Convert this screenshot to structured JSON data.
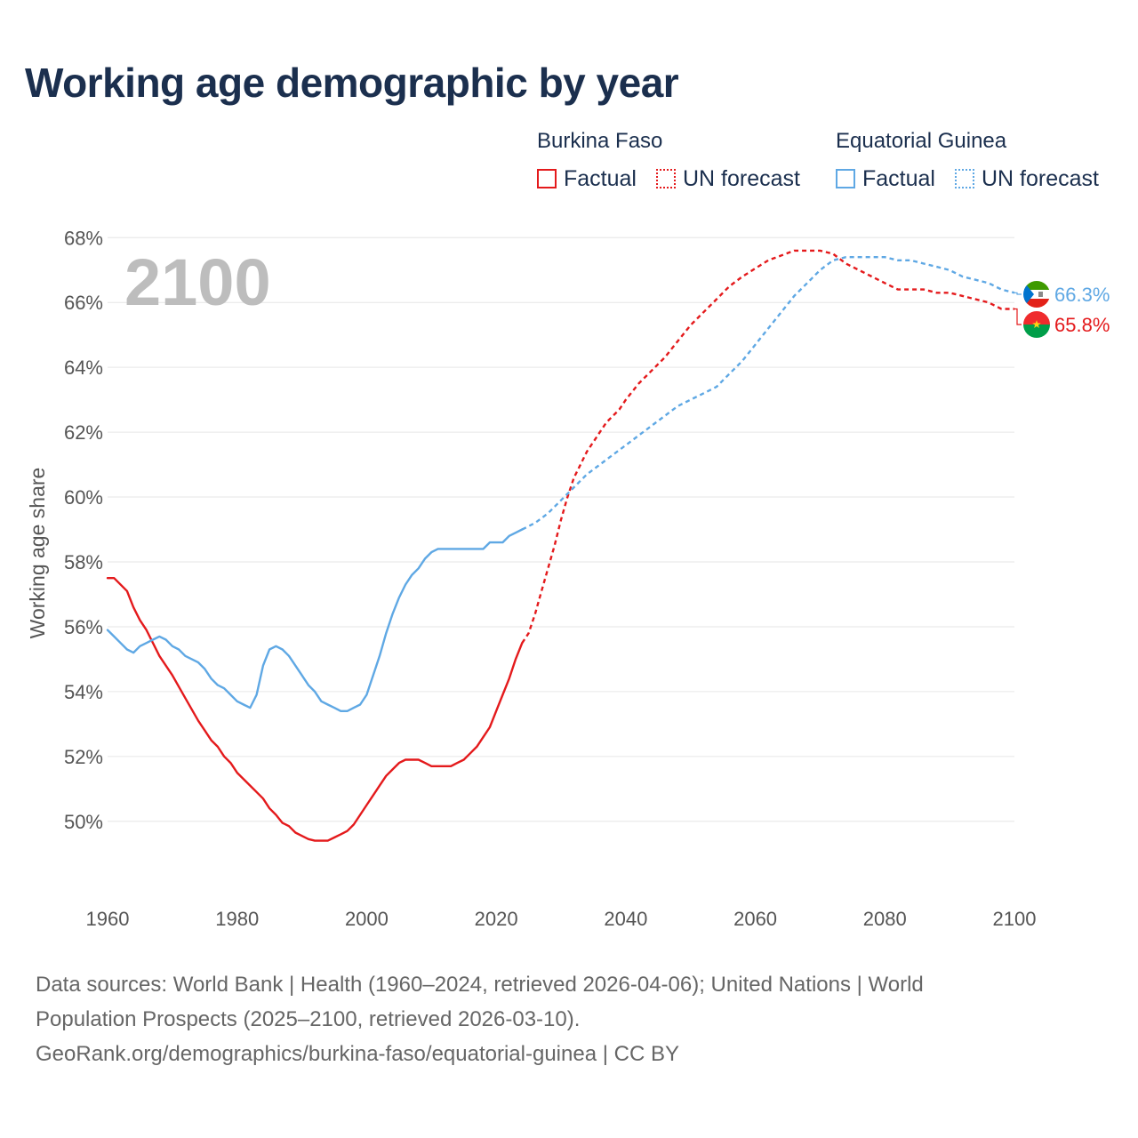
{
  "title": "Working age demographic by year",
  "legend": {
    "groups": [
      {
        "name": "Burkina Faso",
        "factual_label": "Factual",
        "forecast_label": "UN forecast",
        "color": "#e41a1c"
      },
      {
        "name": "Equatorial Guinea",
        "factual_label": "Factual",
        "forecast_label": "UN forecast",
        "color": "#5fa8e4"
      }
    ]
  },
  "chart_data": {
    "type": "line",
    "title": "Working age demographic by year",
    "xlabel": "",
    "ylabel": "Working age share",
    "xlim": [
      1960,
      2100
    ],
    "ylim": [
      47.8,
      68.2
    ],
    "x_ticks": [
      1960,
      1980,
      2000,
      2020,
      2040,
      2060,
      2080,
      2100
    ],
    "x_tick_labels": [
      "1960",
      "1980",
      "2000",
      "2020",
      "2040",
      "2060",
      "2080",
      "2100"
    ],
    "y_ticks": [
      50,
      52,
      54,
      56,
      58,
      60,
      62,
      64,
      66,
      68
    ],
    "y_tick_labels": [
      "50%",
      "52%",
      "54%",
      "56%",
      "58%",
      "60%",
      "62%",
      "64%",
      "66%",
      "68%"
    ],
    "grid": true,
    "year_label": "2100",
    "series": [
      {
        "name": "Burkina Faso",
        "color": "#e41a1c",
        "end_label": "65.8%",
        "factual": {
          "x": [
            1960,
            1961,
            1963,
            1964,
            1965,
            1966,
            1967,
            1968,
            1970,
            1972,
            1974,
            1975,
            1976,
            1977,
            1978,
            1979,
            1980,
            1981,
            1982,
            1984,
            1985,
            1986,
            1987,
            1988,
            1989,
            1990,
            1991,
            1992,
            1993,
            1994,
            1995,
            1996,
            1997,
            1998,
            1999,
            2000,
            2001,
            2002,
            2003,
            2004,
            2005,
            2006,
            2007,
            2008,
            2009,
            2010,
            2011,
            2012,
            2013,
            2014,
            2015,
            2016,
            2017,
            2018,
            2019,
            2020,
            2021,
            2022,
            2023,
            2024
          ],
          "y": [
            57.5,
            57.5,
            57.1,
            56.6,
            56.2,
            55.9,
            55.5,
            55.1,
            54.5,
            53.8,
            53.1,
            52.8,
            52.5,
            52.3,
            52.0,
            51.8,
            51.5,
            51.3,
            51.1,
            50.7,
            50.4,
            50.2,
            49.95,
            49.85,
            49.65,
            49.55,
            49.45,
            49.4,
            49.4,
            49.4,
            49.5,
            49.6,
            49.7,
            49.9,
            50.2,
            50.5,
            50.8,
            51.1,
            51.4,
            51.6,
            51.8,
            51.9,
            51.9,
            51.9,
            51.8,
            51.7,
            51.7,
            51.7,
            51.7,
            51.8,
            51.9,
            52.1,
            52.3,
            52.6,
            52.9,
            53.4,
            53.9,
            54.4,
            55.0,
            55.5
          ]
        },
        "forecast": {
          "x": [
            2024,
            2025,
            2026,
            2027,
            2028,
            2029,
            2030,
            2031,
            2032,
            2033,
            2034,
            2035,
            2036,
            2037,
            2038,
            2039,
            2040,
            2042,
            2044,
            2046,
            2048,
            2050,
            2052,
            2054,
            2056,
            2058,
            2060,
            2062,
            2064,
            2066,
            2068,
            2070,
            2072,
            2074,
            2076,
            2078,
            2080,
            2082,
            2084,
            2086,
            2088,
            2090,
            2092,
            2094,
            2096,
            2098,
            2100
          ],
          "y": [
            55.5,
            55.8,
            56.4,
            57.1,
            57.8,
            58.5,
            59.3,
            60.0,
            60.6,
            61.0,
            61.4,
            61.7,
            62.0,
            62.3,
            62.5,
            62.7,
            63.0,
            63.5,
            63.9,
            64.3,
            64.8,
            65.3,
            65.7,
            66.1,
            66.5,
            66.8,
            67.05,
            67.3,
            67.45,
            67.6,
            67.6,
            67.6,
            67.5,
            67.2,
            67.0,
            66.8,
            66.6,
            66.4,
            66.4,
            66.4,
            66.3,
            66.3,
            66.2,
            66.1,
            66.0,
            65.8,
            65.8
          ]
        }
      },
      {
        "name": "Equatorial Guinea",
        "color": "#5fa8e4",
        "end_label": "66.3%",
        "factual": {
          "x": [
            1960,
            1961,
            1962,
            1963,
            1964,
            1965,
            1966,
            1967,
            1968,
            1969,
            1970,
            1971,
            1972,
            1973,
            1974,
            1975,
            1976,
            1977,
            1978,
            1979,
            1980,
            1981,
            1982,
            1983,
            1984,
            1985,
            1986,
            1987,
            1988,
            1989,
            1990,
            1991,
            1992,
            1993,
            1994,
            1995,
            1996,
            1997,
            1998,
            1999,
            2000,
            2001,
            2002,
            2003,
            2004,
            2005,
            2006,
            2007,
            2008,
            2009,
            2010,
            2011,
            2012,
            2014,
            2016,
            2018,
            2019,
            2020,
            2021,
            2022,
            2023,
            2024
          ],
          "y": [
            55.9,
            55.7,
            55.5,
            55.3,
            55.2,
            55.4,
            55.5,
            55.6,
            55.7,
            55.6,
            55.4,
            55.3,
            55.1,
            55.0,
            54.9,
            54.7,
            54.4,
            54.2,
            54.1,
            53.9,
            53.7,
            53.6,
            53.5,
            53.9,
            54.8,
            55.3,
            55.4,
            55.3,
            55.1,
            54.8,
            54.5,
            54.2,
            54.0,
            53.7,
            53.6,
            53.5,
            53.4,
            53.4,
            53.5,
            53.6,
            53.9,
            54.5,
            55.1,
            55.8,
            56.4,
            56.9,
            57.3,
            57.6,
            57.8,
            58.1,
            58.3,
            58.4,
            58.4,
            58.4,
            58.4,
            58.4,
            58.6,
            58.6,
            58.6,
            58.8,
            58.9,
            59.0
          ]
        },
        "forecast": {
          "x": [
            2024,
            2026,
            2028,
            2030,
            2032,
            2034,
            2036,
            2038,
            2040,
            2042,
            2044,
            2046,
            2048,
            2050,
            2052,
            2054,
            2056,
            2058,
            2060,
            2062,
            2064,
            2066,
            2068,
            2070,
            2072,
            2074,
            2076,
            2078,
            2080,
            2082,
            2084,
            2086,
            2088,
            2090,
            2092,
            2094,
            2096,
            2098,
            2100
          ],
          "y": [
            59.0,
            59.2,
            59.5,
            59.9,
            60.3,
            60.7,
            61.0,
            61.3,
            61.6,
            61.9,
            62.2,
            62.5,
            62.8,
            63.0,
            63.2,
            63.4,
            63.8,
            64.2,
            64.7,
            65.2,
            65.7,
            66.2,
            66.6,
            67.0,
            67.3,
            67.4,
            67.4,
            67.4,
            67.4,
            67.3,
            67.3,
            67.2,
            67.1,
            67.0,
            66.8,
            66.7,
            66.6,
            66.4,
            66.3
          ]
        }
      }
    ]
  },
  "footer": {
    "line1": "Data sources: World Bank | Health (1960–2024, retrieved 2026-04-06); United Nations | World",
    "line2": "Population Prospects (2025–2100, retrieved 2026-03-10).",
    "line3": "GeoRank.org/demographics/burkina-faso/equatorial-guinea | CC BY"
  }
}
